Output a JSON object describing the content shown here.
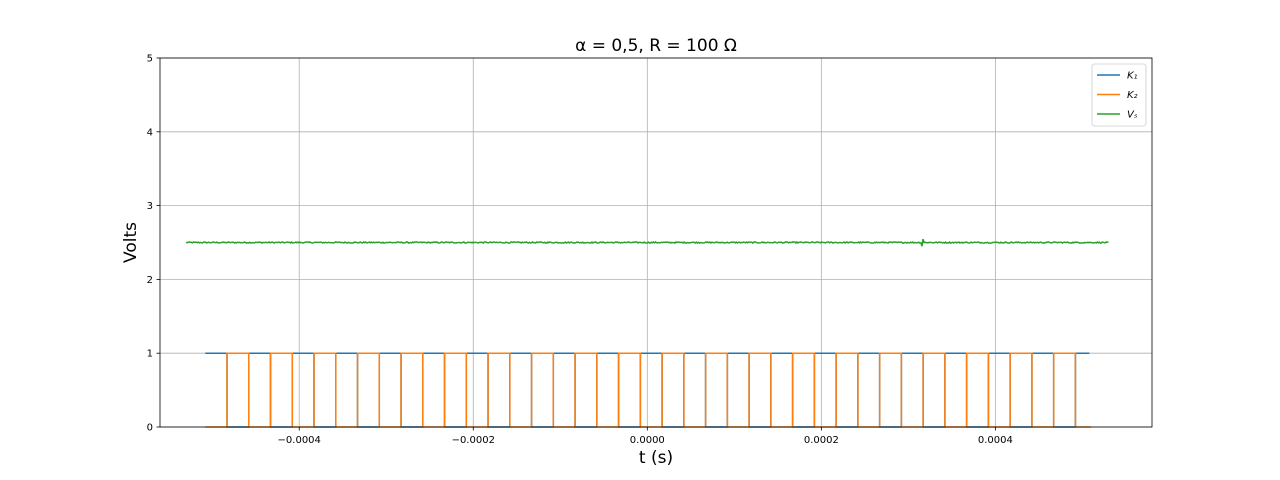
{
  "chart_data": {
    "type": "line",
    "title": "α = 0,5,  R = 100 Ω",
    "xlabel": "t (s)",
    "ylabel": "Volts",
    "xlim": [
      -0.00056,
      0.00058
    ],
    "ylim": [
      0,
      5
    ],
    "x_ticks": [
      {
        "value": -0.0004,
        "label": "−0.0004"
      },
      {
        "value": -0.0002,
        "label": "−0.0002"
      },
      {
        "value": 0.0,
        "label": "0.0000"
      },
      {
        "value": 0.0002,
        "label": "0.0002"
      },
      {
        "value": 0.0004,
        "label": "0.0004"
      }
    ],
    "y_ticks": [
      {
        "value": 0,
        "label": "0"
      },
      {
        "value": 1,
        "label": "1"
      },
      {
        "value": 2,
        "label": "2"
      },
      {
        "value": 3,
        "label": "3"
      },
      {
        "value": 4,
        "label": "4"
      },
      {
        "value": 5,
        "label": "5"
      }
    ],
    "grid": true,
    "legend_position": "top-right",
    "series": [
      {
        "name": "K₁",
        "color": "#1f77b4",
        "kind": "square",
        "x_start": -0.000508,
        "x_end": 0.000508,
        "period": 5e-05,
        "high": 1,
        "low": 0,
        "starts_high": true,
        "duty": 0.5
      },
      {
        "name": "K₂",
        "color": "#ff7f0e",
        "kind": "square",
        "x_start": -0.000508,
        "x_end": 0.00051,
        "period": 5e-05,
        "high": 1,
        "low": 0,
        "starts_high": false,
        "duty": 0.5
      },
      {
        "name": "Vₛ",
        "color": "#2ca02c",
        "kind": "noisy-constant",
        "x_start": -0.00053,
        "x_end": 0.00053,
        "value": 2.5,
        "noise": 0.008,
        "glitch_x": 0.000316,
        "glitch_amp": 0.05
      }
    ]
  }
}
